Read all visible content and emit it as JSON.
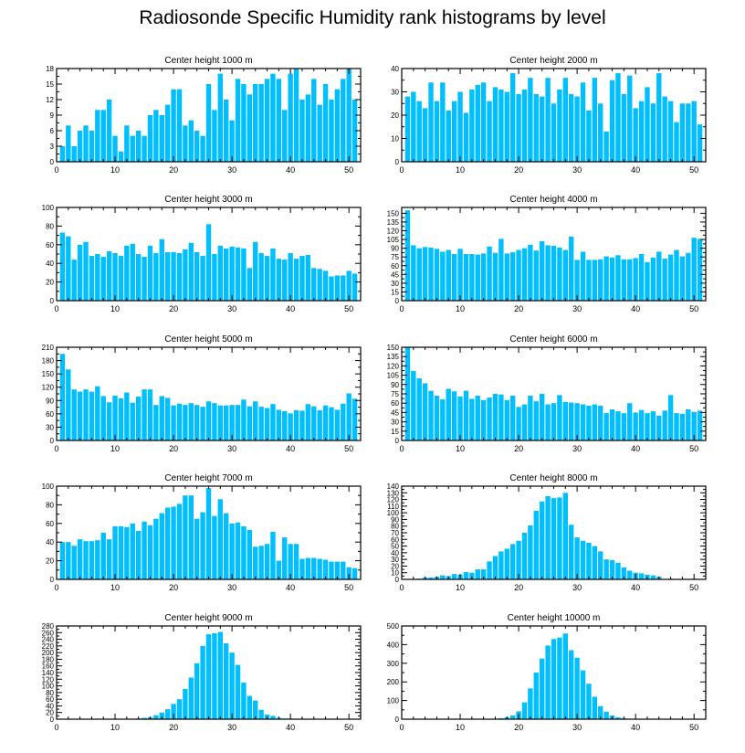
{
  "title": "Radiosonde Specific Humidity rank histograms by level",
  "style": {
    "bar_color": "#00bfff",
    "bar_edge": "#ffffff",
    "axis_color": "#000000"
  },
  "chart_data": [
    {
      "type": "bar",
      "title": "Center height 1000 m",
      "xlim": [
        0,
        52
      ],
      "ylim": [
        0,
        18
      ],
      "xticks": [
        0,
        10,
        20,
        30,
        40,
        50
      ],
      "yticks": [
        0,
        3,
        6,
        9,
        12,
        15,
        18
      ],
      "x": [
        1,
        2,
        3,
        4,
        5,
        6,
        7,
        8,
        9,
        10,
        11,
        12,
        13,
        14,
        15,
        16,
        17,
        18,
        19,
        20,
        21,
        22,
        23,
        24,
        25,
        26,
        27,
        28,
        29,
        30,
        31,
        32,
        33,
        34,
        35,
        36,
        37,
        38,
        39,
        40,
        41,
        42,
        43,
        44,
        45,
        46,
        47,
        48,
        49,
        50,
        51
      ],
      "values": [
        3,
        7,
        3,
        6,
        7,
        6,
        10,
        10,
        12,
        5,
        2,
        7,
        5,
        6,
        5,
        9,
        10,
        9,
        11,
        14,
        14,
        7,
        8,
        6,
        5,
        15,
        10,
        17,
        12,
        8,
        16,
        15,
        13,
        15,
        15,
        16,
        17,
        16,
        10,
        17,
        18,
        12,
        13,
        16,
        11,
        15,
        12,
        14,
        16,
        18,
        12
      ]
    },
    {
      "type": "bar",
      "title": "Center height 2000 m",
      "xlim": [
        0,
        52
      ],
      "ylim": [
        0,
        40
      ],
      "xticks": [
        0,
        10,
        20,
        30,
        40,
        50
      ],
      "yticks": [
        0,
        10,
        20,
        30,
        40
      ],
      "x": [
        1,
        2,
        3,
        4,
        5,
        6,
        7,
        8,
        9,
        10,
        11,
        12,
        13,
        14,
        15,
        16,
        17,
        18,
        19,
        20,
        21,
        22,
        23,
        24,
        25,
        26,
        27,
        28,
        29,
        30,
        31,
        32,
        33,
        34,
        35,
        36,
        37,
        38,
        39,
        40,
        41,
        42,
        43,
        44,
        45,
        46,
        47,
        48,
        49,
        50,
        51
      ],
      "values": [
        28,
        30,
        26,
        23,
        34,
        26,
        34,
        22,
        26,
        30,
        21,
        31,
        33,
        34,
        26,
        32,
        31,
        30,
        38,
        29,
        31,
        36,
        29,
        28,
        36,
        25,
        31,
        36,
        29,
        28,
        34,
        22,
        36,
        25,
        13,
        35,
        38,
        29,
        37,
        23,
        26,
        32,
        25,
        38,
        28,
        26,
        17,
        25,
        25,
        26,
        16
      ]
    },
    {
      "type": "bar",
      "title": "Center height 3000 m",
      "xlim": [
        0,
        52
      ],
      "ylim": [
        0,
        100
      ],
      "xticks": [
        0,
        10,
        20,
        30,
        40,
        50
      ],
      "yticks": [
        0,
        20,
        40,
        60,
        80,
        100
      ],
      "x": [
        1,
        2,
        3,
        4,
        5,
        6,
        7,
        8,
        9,
        10,
        11,
        12,
        13,
        14,
        15,
        16,
        17,
        18,
        19,
        20,
        21,
        22,
        23,
        24,
        25,
        26,
        27,
        28,
        29,
        30,
        31,
        32,
        33,
        34,
        35,
        36,
        37,
        38,
        39,
        40,
        41,
        42,
        43,
        44,
        45,
        46,
        47,
        48,
        49,
        50,
        51
      ],
      "values": [
        73,
        69,
        44,
        60,
        63,
        48,
        50,
        47,
        53,
        51,
        48,
        59,
        61,
        50,
        47,
        59,
        51,
        66,
        52,
        52,
        51,
        55,
        62,
        52,
        48,
        82,
        50,
        59,
        56,
        58,
        57,
        56,
        35,
        63,
        51,
        48,
        56,
        45,
        44,
        51,
        45,
        48,
        49,
        35,
        34,
        32,
        26,
        27,
        27,
        32,
        29
      ]
    },
    {
      "type": "bar",
      "title": "Center height 4000 m",
      "xlim": [
        0,
        52
      ],
      "ylim": [
        0,
        160
      ],
      "xticks": [
        0,
        10,
        20,
        30,
        40,
        50
      ],
      "yticks": [
        0,
        15,
        30,
        45,
        60,
        75,
        90,
        105,
        120,
        135,
        150
      ],
      "x": [
        1,
        2,
        3,
        4,
        5,
        6,
        7,
        8,
        9,
        10,
        11,
        12,
        13,
        14,
        15,
        16,
        17,
        18,
        19,
        20,
        21,
        22,
        23,
        24,
        25,
        26,
        27,
        28,
        29,
        30,
        31,
        32,
        33,
        34,
        35,
        36,
        37,
        38,
        39,
        40,
        41,
        42,
        43,
        44,
        45,
        46,
        47,
        48,
        49,
        50,
        51
      ],
      "values": [
        155,
        95,
        90,
        92,
        91,
        89,
        84,
        87,
        80,
        89,
        80,
        80,
        79,
        81,
        93,
        82,
        106,
        81,
        83,
        87,
        90,
        96,
        86,
        102,
        95,
        94,
        91,
        87,
        110,
        70,
        84,
        70,
        70,
        71,
        76,
        74,
        78,
        71,
        71,
        73,
        80,
        66,
        74,
        84,
        72,
        79,
        87,
        76,
        82,
        108,
        106
      ]
    },
    {
      "type": "bar",
      "title": "Center height 5000 m",
      "xlim": [
        0,
        52
      ],
      "ylim": [
        0,
        210
      ],
      "xticks": [
        0,
        10,
        20,
        30,
        40,
        50
      ],
      "yticks": [
        0,
        30,
        60,
        90,
        120,
        150,
        180,
        210
      ],
      "x": [
        1,
        2,
        3,
        4,
        5,
        6,
        7,
        8,
        9,
        10,
        11,
        12,
        13,
        14,
        15,
        16,
        17,
        18,
        19,
        20,
        21,
        22,
        23,
        24,
        25,
        26,
        27,
        28,
        29,
        30,
        31,
        32,
        33,
        34,
        35,
        36,
        37,
        38,
        39,
        40,
        41,
        42,
        43,
        44,
        45,
        46,
        47,
        48,
        49,
        50,
        51
      ],
      "values": [
        195,
        160,
        115,
        110,
        115,
        110,
        122,
        100,
        86,
        101,
        95,
        108,
        85,
        99,
        115,
        115,
        80,
        100,
        96,
        79,
        83,
        80,
        84,
        80,
        76,
        88,
        84,
        79,
        79,
        80,
        80,
        92,
        77,
        88,
        76,
        73,
        82,
        69,
        66,
        61,
        68,
        67,
        82,
        77,
        68,
        79,
        75,
        69,
        83,
        106,
        94
      ]
    },
    {
      "type": "bar",
      "title": "Center height 6000 m",
      "xlim": [
        0,
        52
      ],
      "ylim": [
        0,
        150
      ],
      "xticks": [
        0,
        10,
        20,
        30,
        40,
        50
      ],
      "yticks": [
        0,
        15,
        30,
        45,
        60,
        75,
        90,
        105,
        120,
        135,
        150
      ],
      "x": [
        1,
        2,
        3,
        4,
        5,
        6,
        7,
        8,
        9,
        10,
        11,
        12,
        13,
        14,
        15,
        16,
        17,
        18,
        19,
        20,
        21,
        22,
        23,
        24,
        25,
        26,
        27,
        28,
        29,
        30,
        31,
        32,
        33,
        34,
        35,
        36,
        37,
        38,
        39,
        40,
        41,
        42,
        43,
        44,
        45,
        46,
        47,
        48,
        49,
        50,
        51
      ],
      "values": [
        150,
        112,
        100,
        92,
        80,
        72,
        66,
        83,
        79,
        71,
        80,
        67,
        72,
        65,
        69,
        75,
        74,
        65,
        72,
        54,
        58,
        72,
        63,
        75,
        58,
        60,
        73,
        62,
        61,
        60,
        58,
        56,
        58,
        56,
        44,
        50,
        47,
        44,
        60,
        45,
        49,
        44,
        47,
        40,
        48,
        73,
        44,
        43,
        50,
        46,
        48
      ]
    },
    {
      "type": "bar",
      "title": "Center height 7000 m",
      "xlim": [
        0,
        52
      ],
      "ylim": [
        0,
        100
      ],
      "xticks": [
        0,
        10,
        20,
        30,
        40,
        50
      ],
      "yticks": [
        0,
        20,
        40,
        60,
        80,
        100
      ],
      "x": [
        1,
        2,
        3,
        4,
        5,
        6,
        7,
        8,
        9,
        10,
        11,
        12,
        13,
        14,
        15,
        16,
        17,
        18,
        19,
        20,
        21,
        22,
        23,
        24,
        25,
        26,
        27,
        28,
        29,
        30,
        31,
        32,
        33,
        34,
        35,
        36,
        37,
        38,
        39,
        40,
        41,
        42,
        43,
        44,
        45,
        46,
        47,
        48,
        49,
        50,
        51
      ],
      "values": [
        40,
        40,
        36,
        43,
        41,
        41,
        42,
        50,
        43,
        57,
        57,
        56,
        60,
        52,
        62,
        58,
        65,
        71,
        77,
        78,
        81,
        90,
        90,
        65,
        72,
        98,
        68,
        86,
        71,
        60,
        61,
        57,
        53,
        35,
        36,
        38,
        51,
        20,
        45,
        38,
        38,
        22,
        23,
        23,
        22,
        21,
        19,
        19,
        19,
        13,
        12
      ]
    },
    {
      "type": "bar",
      "title": "Center height 8000 m",
      "xlim": [
        0,
        52
      ],
      "ylim": [
        0,
        140
      ],
      "xticks": [
        0,
        10,
        20,
        30,
        40,
        50
      ],
      "yticks": [
        0,
        10,
        20,
        30,
        40,
        50,
        60,
        70,
        80,
        90,
        100,
        110,
        120,
        130,
        140
      ],
      "x": [
        1,
        2,
        3,
        4,
        5,
        6,
        7,
        8,
        9,
        10,
        11,
        12,
        13,
        14,
        15,
        16,
        17,
        18,
        19,
        20,
        21,
        22,
        23,
        24,
        25,
        26,
        27,
        28,
        29,
        30,
        31,
        32,
        33,
        34,
        35,
        36,
        37,
        38,
        39,
        40,
        41,
        42,
        43,
        44,
        45,
        46,
        47,
        48,
        49,
        50,
        51
      ],
      "values": [
        0,
        0,
        1,
        3,
        3,
        4,
        6,
        5,
        8,
        7,
        11,
        10,
        15,
        15,
        27,
        35,
        42,
        46,
        53,
        58,
        70,
        81,
        103,
        117,
        125,
        122,
        123,
        130,
        82,
        63,
        58,
        55,
        50,
        42,
        30,
        29,
        25,
        18,
        13,
        10,
        9,
        7,
        6,
        4,
        0,
        1,
        0,
        0,
        0,
        1,
        0
      ]
    },
    {
      "type": "bar",
      "title": "Center height 9000 m",
      "xlim": [
        0,
        52
      ],
      "ylim": [
        0,
        280
      ],
      "xticks": [
        0,
        10,
        20,
        30,
        40,
        50
      ],
      "yticks": [
        0,
        20,
        40,
        60,
        80,
        100,
        120,
        140,
        160,
        180,
        200,
        220,
        240,
        260,
        280
      ],
      "x": [
        1,
        2,
        3,
        4,
        5,
        6,
        7,
        8,
        9,
        10,
        11,
        12,
        13,
        14,
        15,
        16,
        17,
        18,
        19,
        20,
        21,
        22,
        23,
        24,
        25,
        26,
        27,
        28,
        29,
        30,
        31,
        32,
        33,
        34,
        35,
        36,
        37,
        38,
        39,
        40,
        41,
        42,
        43,
        44,
        45,
        46,
        47,
        48,
        49,
        50,
        51
      ],
      "values": [
        0,
        0,
        0,
        0,
        0,
        0,
        0,
        0,
        0,
        0,
        0,
        0,
        1,
        2,
        4,
        6,
        12,
        20,
        30,
        46,
        60,
        91,
        125,
        168,
        220,
        255,
        258,
        262,
        228,
        200,
        163,
        110,
        70,
        56,
        28,
        14,
        10,
        4,
        2,
        2,
        1,
        0,
        0,
        0,
        0,
        0,
        0,
        0,
        0,
        0,
        0
      ]
    },
    {
      "type": "bar",
      "title": "Center height 10000 m",
      "xlim": [
        0,
        52
      ],
      "ylim": [
        0,
        500
      ],
      "xticks": [
        0,
        10,
        20,
        30,
        40,
        50
      ],
      "yticks": [
        0,
        100,
        200,
        300,
        400,
        500
      ],
      "x": [
        1,
        2,
        3,
        4,
        5,
        6,
        7,
        8,
        9,
        10,
        11,
        12,
        13,
        14,
        15,
        16,
        17,
        18,
        19,
        20,
        21,
        22,
        23,
        24,
        25,
        26,
        27,
        28,
        29,
        30,
        31,
        32,
        33,
        34,
        35,
        36,
        37,
        38,
        39,
        40,
        41,
        42,
        43,
        44,
        45,
        46,
        47,
        48,
        49,
        50,
        51
      ],
      "values": [
        0,
        0,
        0,
        0,
        0,
        0,
        0,
        0,
        0,
        0,
        0,
        0,
        0,
        0,
        0,
        2,
        5,
        10,
        20,
        42,
        90,
        165,
        250,
        325,
        395,
        430,
        438,
        460,
        370,
        330,
        262,
        190,
        120,
        70,
        40,
        20,
        10,
        5,
        2,
        1,
        0,
        0,
        0,
        0,
        0,
        0,
        0,
        0,
        0,
        0,
        0
      ]
    }
  ]
}
